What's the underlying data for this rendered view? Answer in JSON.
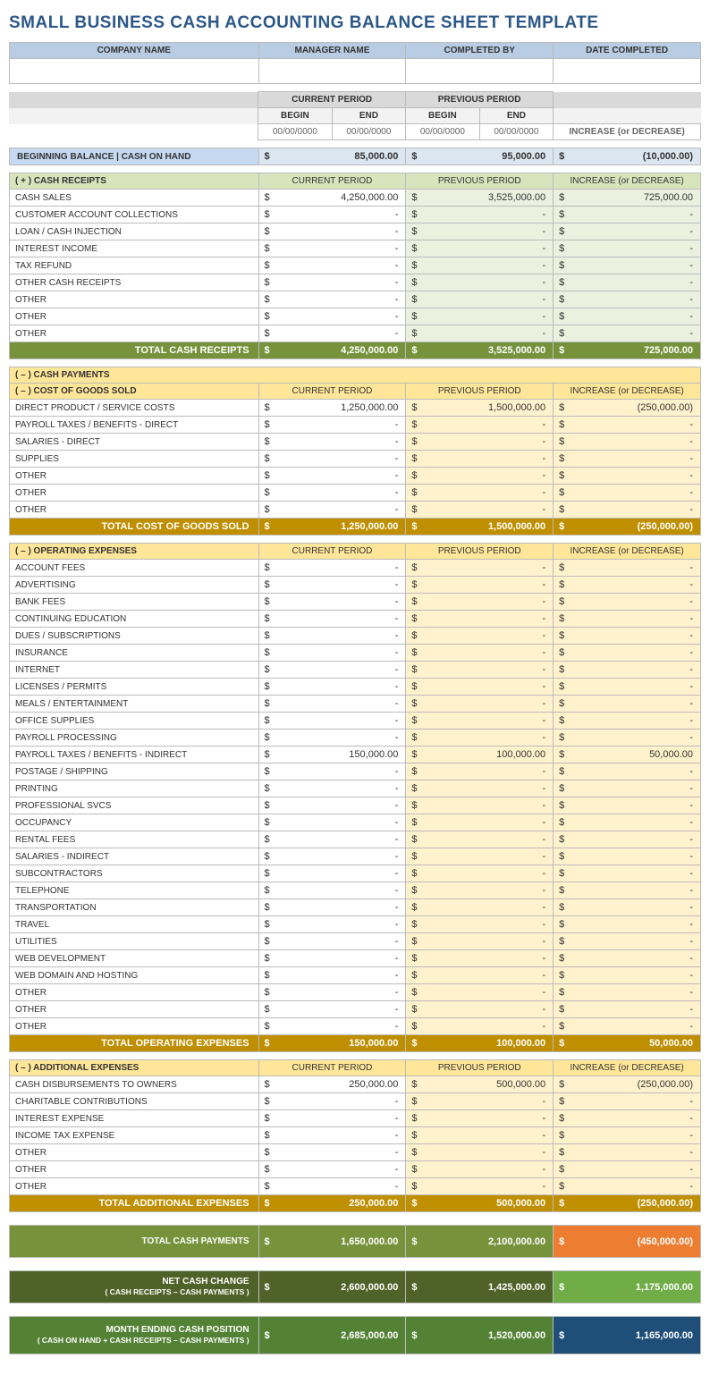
{
  "title": "SMALL BUSINESS CASH ACCOUNTING BALANCE SHEET TEMPLATE",
  "header": {
    "company": "COMPANY NAME",
    "manager": "MANAGER NAME",
    "completed_by": "COMPLETED BY",
    "date": "DATE COMPLETED"
  },
  "periods": {
    "cur": "CURRENT PERIOD",
    "prev": "PREVIOUS PERIOD",
    "begin": "BEGIN",
    "end": "END",
    "placeholder": "00/00/0000",
    "inc": "INCREASE (or DECREASE)"
  },
  "beginBal": {
    "label": "BEGINNING BALANCE  |  CASH ON HAND",
    "cur": "85,000.00",
    "prev": "95,000.00",
    "inc": "(10,000.00)"
  },
  "receipts": {
    "hdr": "( + )   CASH RECEIPTS",
    "rows": [
      {
        "l": "CASH SALES",
        "c": "4,250,000.00",
        "p": "3,525,000.00",
        "i": "725,000.00"
      },
      {
        "l": "CUSTOMER ACCOUNT COLLECTIONS",
        "c": "-",
        "p": "-",
        "i": "-"
      },
      {
        "l": "LOAN / CASH INJECTION",
        "c": "-",
        "p": "-",
        "i": "-"
      },
      {
        "l": "INTEREST INCOME",
        "c": "-",
        "p": "-",
        "i": "-"
      },
      {
        "l": "TAX REFUND",
        "c": "-",
        "p": "-",
        "i": "-"
      },
      {
        "l": "OTHER CASH RECEIPTS",
        "c": "-",
        "p": "-",
        "i": "-"
      },
      {
        "l": "OTHER",
        "c": "-",
        "p": "-",
        "i": "-"
      },
      {
        "l": "OTHER",
        "c": "-",
        "p": "-",
        "i": "-"
      },
      {
        "l": "OTHER",
        "c": "-",
        "p": "-",
        "i": "-"
      }
    ],
    "total": {
      "l": "TOTAL CASH RECEIPTS",
      "c": "4,250,000.00",
      "p": "3,525,000.00",
      "i": "725,000.00"
    }
  },
  "payments_hdr": "( – )   CASH PAYMENTS",
  "cogs": {
    "hdr": "( – )   COST OF GOODS SOLD",
    "rows": [
      {
        "l": "DIRECT PRODUCT / SERVICE COSTS",
        "c": "1,250,000.00",
        "p": "1,500,000.00",
        "i": "(250,000.00)"
      },
      {
        "l": "PAYROLL TAXES / BENEFITS - DIRECT",
        "c": "-",
        "p": "-",
        "i": "-"
      },
      {
        "l": "SALARIES - DIRECT",
        "c": "-",
        "p": "-",
        "i": "-"
      },
      {
        "l": "SUPPLIES",
        "c": "-",
        "p": "-",
        "i": "-"
      },
      {
        "l": "OTHER",
        "c": "-",
        "p": "-",
        "i": "-"
      },
      {
        "l": "OTHER",
        "c": "-",
        "p": "-",
        "i": "-"
      },
      {
        "l": "OTHER",
        "c": "-",
        "p": "-",
        "i": "-"
      }
    ],
    "total": {
      "l": "TOTAL COST OF GOODS SOLD",
      "c": "1,250,000.00",
      "p": "1,500,000.00",
      "i": "(250,000.00)"
    }
  },
  "opex": {
    "hdr": "( – )   OPERATING EXPENSES",
    "rows": [
      {
        "l": "ACCOUNT FEES",
        "c": "-",
        "p": "-",
        "i": "-"
      },
      {
        "l": "ADVERTISING",
        "c": "-",
        "p": "-",
        "i": "-"
      },
      {
        "l": "BANK FEES",
        "c": "-",
        "p": "-",
        "i": "-"
      },
      {
        "l": "CONTINUING EDUCATION",
        "c": "-",
        "p": "-",
        "i": "-"
      },
      {
        "l": "DUES / SUBSCRIPTIONS",
        "c": "-",
        "p": "-",
        "i": "-"
      },
      {
        "l": "INSURANCE",
        "c": "-",
        "p": "-",
        "i": "-"
      },
      {
        "l": "INTERNET",
        "c": "-",
        "p": "-",
        "i": "-"
      },
      {
        "l": "LICENSES / PERMITS",
        "c": "-",
        "p": "-",
        "i": "-"
      },
      {
        "l": "MEALS / ENTERTAINMENT",
        "c": "-",
        "p": "-",
        "i": "-"
      },
      {
        "l": "OFFICE SUPPLIES",
        "c": "-",
        "p": "-",
        "i": "-"
      },
      {
        "l": "PAYROLL PROCESSING",
        "c": "-",
        "p": "-",
        "i": "-"
      },
      {
        "l": "PAYROLL TAXES / BENEFITS - INDIRECT",
        "c": "150,000.00",
        "p": "100,000.00",
        "i": "50,000.00"
      },
      {
        "l": "POSTAGE / SHIPPING",
        "c": "-",
        "p": "-",
        "i": "-"
      },
      {
        "l": "PRINTING",
        "c": "-",
        "p": "-",
        "i": "-"
      },
      {
        "l": "PROFESSIONAL SVCS",
        "c": "-",
        "p": "-",
        "i": "-"
      },
      {
        "l": "OCCUPANCY",
        "c": "-",
        "p": "-",
        "i": "-"
      },
      {
        "l": "RENTAL FEES",
        "c": "-",
        "p": "-",
        "i": "-"
      },
      {
        "l": "SALARIES - INDIRECT",
        "c": "-",
        "p": "-",
        "i": "-"
      },
      {
        "l": "SUBCONTRACTORS",
        "c": "-",
        "p": "-",
        "i": "-"
      },
      {
        "l": "TELEPHONE",
        "c": "-",
        "p": "-",
        "i": "-"
      },
      {
        "l": "TRANSPORTATION",
        "c": "-",
        "p": "-",
        "i": "-"
      },
      {
        "l": "TRAVEL",
        "c": "-",
        "p": "-",
        "i": "-"
      },
      {
        "l": "UTILITIES",
        "c": "-",
        "p": "-",
        "i": "-"
      },
      {
        "l": "WEB DEVELOPMENT",
        "c": "-",
        "p": "-",
        "i": "-"
      },
      {
        "l": "WEB DOMAIN AND HOSTING",
        "c": "-",
        "p": "-",
        "i": "-"
      },
      {
        "l": "OTHER",
        "c": "-",
        "p": "-",
        "i": "-"
      },
      {
        "l": "OTHER",
        "c": "-",
        "p": "-",
        "i": "-"
      },
      {
        "l": "OTHER",
        "c": "-",
        "p": "-",
        "i": "-"
      }
    ],
    "total": {
      "l": "TOTAL OPERATING EXPENSES",
      "c": "150,000.00",
      "p": "100,000.00",
      "i": "50,000.00"
    }
  },
  "addl": {
    "hdr": "( – )   ADDITIONAL EXPENSES",
    "rows": [
      {
        "l": "CASH DISBURSEMENTS TO OWNERS",
        "c": "250,000.00",
        "p": "500,000.00",
        "i": "(250,000.00)"
      },
      {
        "l": "CHARITABLE CONTRIBUTIONS",
        "c": "-",
        "p": "-",
        "i": "-"
      },
      {
        "l": "INTEREST EXPENSE",
        "c": "-",
        "p": "-",
        "i": "-"
      },
      {
        "l": "INCOME TAX EXPENSE",
        "c": "-",
        "p": "-",
        "i": "-"
      },
      {
        "l": "OTHER",
        "c": "-",
        "p": "-",
        "i": "-"
      },
      {
        "l": "OTHER",
        "c": "-",
        "p": "-",
        "i": "-"
      },
      {
        "l": "OTHER",
        "c": "-",
        "p": "-",
        "i": "-"
      }
    ],
    "total": {
      "l": "TOTAL ADDITIONAL EXPENSES",
      "c": "250,000.00",
      "p": "500,000.00",
      "i": "(250,000.00)"
    }
  },
  "totalPayments": {
    "l": "TOTAL CASH PAYMENTS",
    "c": "1,650,000.00",
    "p": "2,100,000.00",
    "i": "(450,000.00)"
  },
  "netCash": {
    "l": "NET CASH CHANGE",
    "sub": "( CASH RECEIPTS – CASH PAYMENTS )",
    "c": "2,600,000.00",
    "p": "1,425,000.00",
    "i": "1,175,000.00"
  },
  "ending": {
    "l": "MONTH ENDING CASH POSITION",
    "sub": "( CASH ON HAND + CASH RECEIPTS – CASH PAYMENTS )",
    "c": "2,685,000.00",
    "p": "1,520,000.00",
    "i": "1,165,000.00"
  }
}
